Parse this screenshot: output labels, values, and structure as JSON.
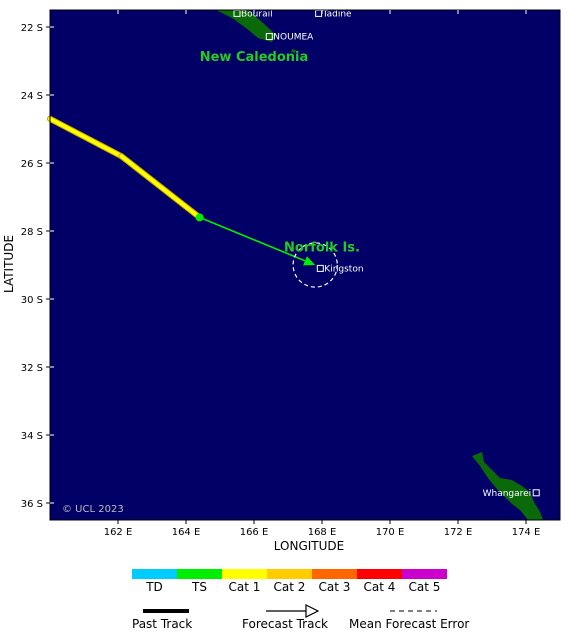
{
  "map": {
    "lon_range": [
      160.0,
      175.0
    ],
    "lat_range": [
      -36.5,
      -21.5
    ],
    "ocean_color": "#000066",
    "land_color": "#0a6a0a",
    "x_axis_title": "LONGITUDE",
    "y_axis_title": "LATITUDE",
    "x_ticks": [
      {
        "value": 162,
        "label": "162 E"
      },
      {
        "value": 164,
        "label": "164 E"
      },
      {
        "value": 166,
        "label": "166 E"
      },
      {
        "value": 168,
        "label": "168 E"
      },
      {
        "value": 170,
        "label": "170 E"
      },
      {
        "value": 172,
        "label": "172 E"
      },
      {
        "value": 174,
        "label": "174 E"
      }
    ],
    "y_ticks": [
      {
        "value": -22,
        "label": "22 S"
      },
      {
        "value": -24,
        "label": "24 S"
      },
      {
        "value": -26,
        "label": "26 S"
      },
      {
        "value": -28,
        "label": "28 S"
      },
      {
        "value": -30,
        "label": "30 S"
      },
      {
        "value": -32,
        "label": "32 S"
      },
      {
        "value": -34,
        "label": "34 S"
      },
      {
        "value": -36,
        "label": "36 S"
      }
    ],
    "copyright": "© UCL 2023"
  },
  "places": [
    {
      "name": "Bourail",
      "lon": 165.5,
      "lat": -21.6
    },
    {
      "name": "Tadine",
      "lon": 167.9,
      "lat": -21.6
    },
    {
      "name": "NOUMEA",
      "lon": 166.45,
      "lat": -22.28
    },
    {
      "name": "Kingston",
      "lon": 167.95,
      "lat": -29.1
    },
    {
      "name": "Whangarei",
      "lon": 174.3,
      "lat": -35.7
    }
  ],
  "regions": [
    {
      "name": "New Caledonia",
      "lon": 166.0,
      "lat": -23.0
    },
    {
      "name": "Norfolk Is.",
      "lon": 168.0,
      "lat": -28.6
    }
  ],
  "track": {
    "past": [
      {
        "lon": 160.0,
        "lat": -24.7,
        "category": "Cat 1"
      },
      {
        "lon": 162.1,
        "lat": -25.8,
        "category": "Cat 1"
      },
      {
        "lon": 164.4,
        "lat": -27.6,
        "category": "Cat 1"
      }
    ],
    "forecast_start": {
      "lon": 164.4,
      "lat": -27.6,
      "category": "TS"
    },
    "forecast_end": {
      "lon": 167.8,
      "lat": -29.0,
      "category": "TS"
    },
    "error_radius_deg": 0.65
  },
  "legend": {
    "categories": [
      {
        "label": "TD",
        "color": "#00ccff"
      },
      {
        "label": "TS",
        "color": "#00ee00"
      },
      {
        "label": "Cat 1",
        "color": "#ffff00"
      },
      {
        "label": "Cat 2",
        "color": "#ffcc00"
      },
      {
        "label": "Cat 3",
        "color": "#ff6600"
      },
      {
        "label": "Cat 4",
        "color": "#ff0000"
      },
      {
        "label": "Cat 5",
        "color": "#cc00cc"
      }
    ],
    "past_track": "Past Track",
    "forecast_track": "Forecast Track",
    "mean_forecast_error": "Mean Forecast Error"
  }
}
